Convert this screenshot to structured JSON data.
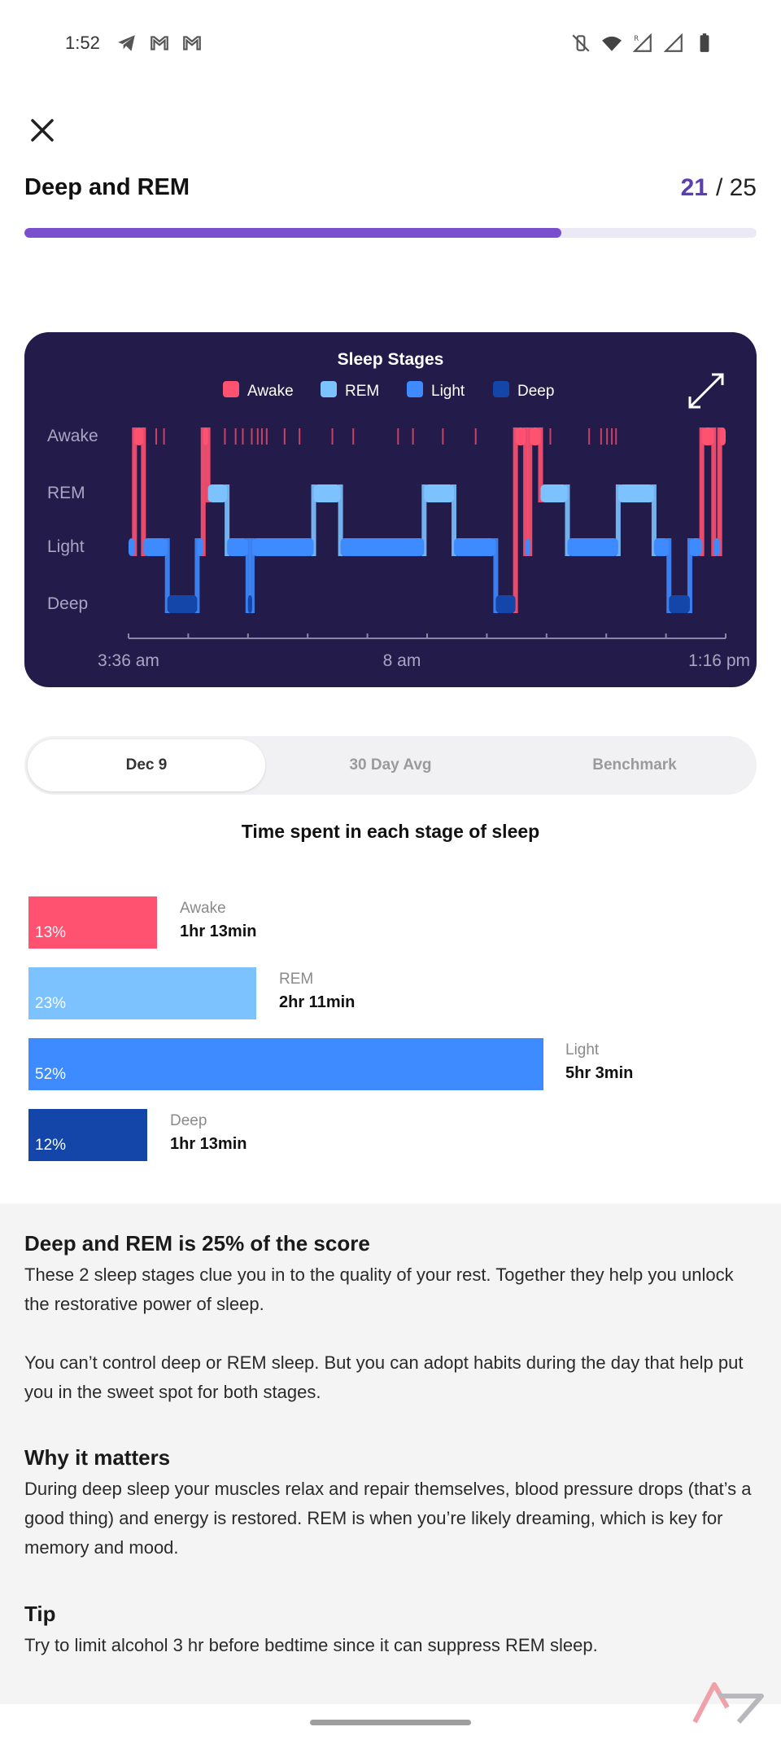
{
  "status_bar": {
    "time": "1:52",
    "left_icons": [
      "telegram-icon",
      "gmail-icon",
      "gmail-icon"
    ],
    "right_icons": [
      "mute-vibrate-icon",
      "wifi-icon",
      "signal-roaming-icon",
      "signal-icon",
      "battery-icon"
    ]
  },
  "header": {
    "title": "Deep and REM",
    "current": "21",
    "total": "/ 25",
    "progress": 0.733
  },
  "chart": {
    "title": "Sleep Stages",
    "legend": [
      {
        "name": "Awake",
        "color": "#ff5170"
      },
      {
        "name": "REM",
        "color": "#7cc2ff"
      },
      {
        "name": "Light",
        "color": "#3d8bff"
      },
      {
        "name": "Deep",
        "color": "#1346a8"
      }
    ],
    "y_labels": [
      "Awake",
      "REM",
      "Light",
      "Deep"
    ],
    "x_labels": [
      "3:36 am",
      "8 am",
      "1:16 pm"
    ]
  },
  "chart_data": {
    "type": "step",
    "title": "Sleep Stages",
    "series_order": [
      "Awake",
      "REM",
      "Light",
      "Deep"
    ],
    "x_labels": [
      "3:36 am",
      "8 am",
      "1:16 pm"
    ],
    "x_range": [
      "3:36 am",
      "1:16 pm"
    ],
    "legend": [
      "Awake",
      "REM",
      "Light",
      "Deep"
    ],
    "segments": [
      {
        "stage": "Light",
        "t": [
          0.0,
          0.01
        ]
      },
      {
        "stage": "Awake",
        "t": [
          0.01,
          0.025
        ]
      },
      {
        "stage": "Light",
        "t": [
          0.025,
          0.065
        ]
      },
      {
        "stage": "Deep",
        "t": [
          0.065,
          0.115
        ]
      },
      {
        "stage": "Light",
        "t": [
          0.115,
          0.125
        ]
      },
      {
        "stage": "Awake",
        "t": [
          0.125,
          0.133
        ]
      },
      {
        "stage": "REM",
        "t": [
          0.133,
          0.165
        ]
      },
      {
        "stage": "Light",
        "t": [
          0.165,
          0.2
        ]
      },
      {
        "stage": "Deep",
        "t": [
          0.2,
          0.207
        ]
      },
      {
        "stage": "Light",
        "t": [
          0.207,
          0.31
        ]
      },
      {
        "stage": "REM",
        "t": [
          0.31,
          0.355
        ]
      },
      {
        "stage": "Light",
        "t": [
          0.355,
          0.495
        ]
      },
      {
        "stage": "REM",
        "t": [
          0.495,
          0.545
        ]
      },
      {
        "stage": "Light",
        "t": [
          0.545,
          0.615
        ]
      },
      {
        "stage": "Deep",
        "t": [
          0.615,
          0.648
        ]
      },
      {
        "stage": "Awake",
        "t": [
          0.648,
          0.665
        ]
      },
      {
        "stage": "Light",
        "t": [
          0.665,
          0.672
        ]
      },
      {
        "stage": "Awake",
        "t": [
          0.672,
          0.69
        ]
      },
      {
        "stage": "REM",
        "t": [
          0.69,
          0.735
        ]
      },
      {
        "stage": "Light",
        "t": [
          0.735,
          0.82
        ]
      },
      {
        "stage": "REM",
        "t": [
          0.82,
          0.88
        ]
      },
      {
        "stage": "Light",
        "t": [
          0.88,
          0.905
        ]
      },
      {
        "stage": "Deep",
        "t": [
          0.905,
          0.94
        ]
      },
      {
        "stage": "Light",
        "t": [
          0.94,
          0.96
        ]
      },
      {
        "stage": "Awake",
        "t": [
          0.96,
          0.98
        ]
      },
      {
        "stage": "Light",
        "t": [
          0.98,
          0.99
        ]
      },
      {
        "stage": "Awake",
        "t": [
          0.99,
          1.0
        ]
      }
    ],
    "awake_ticks": [
      0.045,
      0.058,
      0.16,
      0.178,
      0.19,
      0.205,
      0.215,
      0.222,
      0.23,
      0.26,
      0.285,
      0.34,
      0.375,
      0.45,
      0.475,
      0.525,
      0.58,
      0.705,
      0.77,
      0.79,
      0.8,
      0.808,
      0.815
    ],
    "stage_breakdown": [
      {
        "stage": "Awake",
        "percent": 13,
        "duration": "1hr 13min"
      },
      {
        "stage": "REM",
        "percent": 23,
        "duration": "2hr 11min"
      },
      {
        "stage": "Light",
        "percent": 52,
        "duration": "5hr 3min"
      },
      {
        "stage": "Deep",
        "percent": 12,
        "duration": "1hr 13min"
      }
    ]
  },
  "tabs": [
    {
      "label": "Dec 9",
      "active": true
    },
    {
      "label": "30 Day Avg",
      "active": false
    },
    {
      "label": "Benchmark",
      "active": false
    }
  ],
  "section_title": "Time spent in each stage of sleep",
  "bars": [
    {
      "name": "Awake",
      "pct_label": "13%",
      "duration": "1hr 13min",
      "percent": 13,
      "color": "#ff5170"
    },
    {
      "name": "REM",
      "pct_label": "23%",
      "duration": "2hr 11min",
      "percent": 23,
      "color": "#7cc2ff"
    },
    {
      "name": "Light",
      "pct_label": "52%",
      "duration": "5hr 3min",
      "percent": 52,
      "color": "#3d8bff"
    },
    {
      "name": "Deep",
      "pct_label": "12%",
      "duration": "1hr 13min",
      "percent": 12,
      "color": "#1346a8"
    }
  ],
  "info": {
    "h1": "Deep and REM is 25% of the score",
    "p1": "These 2 sleep stages clue you in to the quality of your rest. Together they help you unlock the restorative power of sleep.",
    "p2": "You can’t control deep or REM sleep. But you can adopt habits during the day that help put you in the sweet spot for both stages.",
    "h2": "Why it matters",
    "p3": "During deep sleep your muscles relax and repair themselves, blood pressure drops (that’s a good thing) and energy is restored. REM is when you’re likely dreaming, which is key for memory and mood.",
    "h3": "Tip",
    "p4": "Try to limit alcohol 3 hr before bedtime since it can suppress REM sleep."
  }
}
